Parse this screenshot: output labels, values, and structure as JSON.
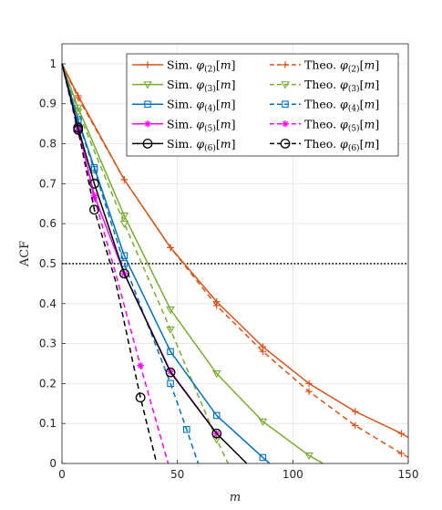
{
  "chart_data": {
    "type": "line",
    "xlabel": "m",
    "ylabel": "ACF",
    "xlim": [
      0,
      150
    ],
    "ylim": [
      0,
      1.05
    ],
    "xticks": [
      0,
      50,
      100,
      150
    ],
    "yticks": [
      0,
      0.1,
      0.2,
      0.3,
      0.4,
      0.5,
      0.6,
      0.7,
      0.8,
      0.9,
      1
    ],
    "grid": true,
    "legend_position": "top-right",
    "reference_line": {
      "y": 0.5,
      "style": "dotted",
      "color": "#000000"
    },
    "series": [
      {
        "name": "Sim. φ(2)[m]",
        "legend_prefix": "Sim.",
        "legend_sub": "(2)",
        "color": "#D95319",
        "dash": "solid",
        "marker": "plus",
        "x": [
          0,
          7,
          27,
          47,
          67,
          87,
          107,
          127,
          147,
          150
        ],
        "y": [
          1.0,
          0.92,
          0.71,
          0.54,
          0.405,
          0.292,
          0.2,
          0.13,
          0.075,
          0.065
        ],
        "mx": [
          7,
          27,
          47,
          67,
          87,
          107,
          127,
          147
        ],
        "my": [
          0.92,
          0.71,
          0.54,
          0.405,
          0.292,
          0.2,
          0.13,
          0.075
        ]
      },
      {
        "name": "Theo. φ(2)[m]",
        "legend_prefix": "Theo.",
        "legend_sub": "(2)",
        "color": "#D95319",
        "dash": "dashed",
        "marker": "plus",
        "x": [
          0,
          7,
          27,
          47,
          67,
          87,
          107,
          127,
          147,
          150
        ],
        "y": [
          1.0,
          0.915,
          0.71,
          0.54,
          0.395,
          0.28,
          0.18,
          0.095,
          0.025,
          0.015
        ],
        "mx": [
          7,
          27,
          47,
          67,
          87,
          107,
          127,
          147
        ],
        "my": [
          0.915,
          0.71,
          0.54,
          0.395,
          0.28,
          0.18,
          0.095,
          0.025
        ]
      },
      {
        "name": "Sim. φ(3)[m]",
        "legend_prefix": "Sim.",
        "legend_sub": "(3)",
        "color": "#77AC30",
        "dash": "solid",
        "marker": "triangle-down",
        "x": [
          0,
          7,
          27,
          47,
          67,
          87,
          107,
          113
        ],
        "y": [
          1.0,
          0.89,
          0.62,
          0.385,
          0.225,
          0.105,
          0.02,
          0.0
        ],
        "mx": [
          7,
          27,
          47,
          67,
          87,
          107
        ],
        "my": [
          0.89,
          0.62,
          0.385,
          0.225,
          0.105,
          0.02
        ]
      },
      {
        "name": "Theo. φ(3)[m]",
        "legend_prefix": "Theo.",
        "legend_sub": "(3)",
        "color": "#77AC30",
        "dash": "dashed",
        "marker": "triangle-down",
        "x": [
          0,
          7,
          27,
          47,
          67,
          72
        ],
        "y": [
          1.0,
          0.88,
          0.6,
          0.335,
          0.06,
          0.0
        ],
        "mx": [
          7,
          27,
          47,
          67
        ],
        "my": [
          0.88,
          0.6,
          0.335,
          0.06
        ]
      },
      {
        "name": "Sim. φ(4)[m]",
        "legend_prefix": "Sim.",
        "legend_sub": "(4)",
        "color": "#0072BD",
        "dash": "solid",
        "marker": "square",
        "x": [
          0,
          7,
          14,
          27,
          47,
          67,
          87,
          90
        ],
        "y": [
          1.0,
          0.86,
          0.74,
          0.52,
          0.28,
          0.12,
          0.015,
          0.0
        ],
        "mx": [
          7,
          14,
          27,
          47,
          67,
          87
        ],
        "my": [
          0.86,
          0.74,
          0.52,
          0.28,
          0.12,
          0.015
        ]
      },
      {
        "name": "Theo. φ(4)[m]",
        "legend_prefix": "Theo.",
        "legend_sub": "(4)",
        "color": "#0072BD",
        "dash": "dashed",
        "marker": "square",
        "x": [
          0,
          7,
          14,
          27,
          47,
          54,
          59
        ],
        "y": [
          1.0,
          0.855,
          0.735,
          0.5,
          0.2,
          0.085,
          0.0
        ],
        "mx": [
          7,
          14,
          27,
          47,
          54
        ],
        "my": [
          0.855,
          0.735,
          0.5,
          0.2,
          0.085
        ]
      },
      {
        "name": "Sim. φ(5)[m]",
        "legend_prefix": "Sim.",
        "legend_sub": "(5)",
        "color": "#FF00FF",
        "dash": "solid",
        "marker": "asterisk",
        "x": [
          0,
          7,
          14,
          27,
          47,
          67
        ],
        "y": [
          1.0,
          0.84,
          0.67,
          0.475,
          0.23,
          0.075
        ],
        "mx": [
          7,
          14,
          27,
          47,
          67
        ],
        "my": [
          0.84,
          0.67,
          0.475,
          0.23,
          0.075
        ]
      },
      {
        "name": "Theo. φ(5)[m]",
        "legend_prefix": "Theo.",
        "legend_sub": "(5)",
        "color": "#FF00FF",
        "dash": "dashed",
        "marker": "asterisk",
        "x": [
          0,
          7,
          14,
          23,
          34,
          46
        ],
        "y": [
          1.0,
          0.83,
          0.665,
          0.48,
          0.245,
          0.0
        ],
        "mx": [
          7,
          14,
          34
        ],
        "my": [
          0.83,
          0.665,
          0.245
        ]
      },
      {
        "name": "Sim. φ(6)[m]",
        "legend_prefix": "Sim.",
        "legend_sub": "(6)",
        "color": "#000000",
        "dash": "solid",
        "marker": "circle",
        "x": [
          0,
          7,
          14,
          27,
          47,
          67,
          80
        ],
        "y": [
          1.0,
          0.84,
          0.7,
          0.475,
          0.228,
          0.075,
          0.0
        ],
        "mx": [
          7,
          14,
          27,
          47,
          67
        ],
        "my": [
          0.84,
          0.7,
          0.475,
          0.228,
          0.075
        ]
      },
      {
        "name": "Theo. φ(6)[m]",
        "legend_prefix": "Theo.",
        "legend_sub": "(6)",
        "color": "#000000",
        "dash": "dashed",
        "marker": "circle",
        "x": [
          0,
          7,
          14,
          23,
          34,
          41
        ],
        "y": [
          1.0,
          0.835,
          0.635,
          0.46,
          0.165,
          0.0
        ],
        "mx": [
          7,
          14,
          34
        ],
        "my": [
          0.835,
          0.635,
          0.165
        ]
      }
    ]
  }
}
